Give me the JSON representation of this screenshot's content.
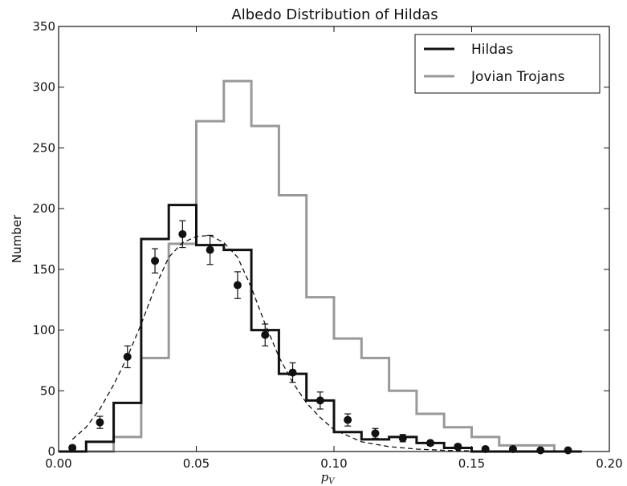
{
  "chart_data": {
    "type": "histogram",
    "title": "Albedo Distribution of Hildas",
    "xlabel": "p",
    "xlabel_sub": "V",
    "ylabel": "Number",
    "xlim": [
      0.0,
      0.2
    ],
    "ylim": [
      0,
      350
    ],
    "xticks": [
      0.0,
      0.05,
      0.1,
      0.15,
      0.2
    ],
    "xtick_labels": [
      "0.00",
      "0.05",
      "0.10",
      "0.15",
      "0.20"
    ],
    "yticks": [
      0,
      50,
      100,
      150,
      200,
      250,
      300,
      350
    ],
    "ytick_labels": [
      "0",
      "50",
      "100",
      "150",
      "200",
      "250",
      "300",
      "350"
    ],
    "grid": false,
    "legend_position": "top-right",
    "bin_edges": [
      0.0,
      0.01,
      0.02,
      0.03,
      0.04,
      0.05,
      0.06,
      0.07,
      0.08,
      0.09,
      0.1,
      0.11,
      0.12,
      0.13,
      0.14,
      0.15,
      0.16,
      0.17,
      0.18,
      0.19
    ],
    "series": [
      {
        "name": "Jovian Trojans",
        "kind": "step",
        "color": "#999999",
        "values": [
          0,
          0,
          12,
          77,
          171,
          272,
          305,
          268,
          211,
          127,
          93,
          77,
          50,
          31,
          20,
          12,
          5,
          5,
          0
        ]
      },
      {
        "name": "Hildas",
        "kind": "step",
        "color": "#111111",
        "values": [
          0,
          8,
          40,
          175,
          203,
          170,
          166,
          100,
          64,
          42,
          16,
          10,
          12,
          7,
          3,
          0,
          0,
          0,
          0
        ]
      },
      {
        "kind": "points",
        "color": "#111111",
        "x": [
          0.005,
          0.015,
          0.025,
          0.035,
          0.045,
          0.055,
          0.065,
          0.075,
          0.085,
          0.095,
          0.105,
          0.115,
          0.125,
          0.135,
          0.145,
          0.155,
          0.165,
          0.175,
          0.185
        ],
        "y": [
          3,
          24,
          78,
          157,
          179,
          166,
          137,
          96,
          65,
          42,
          26,
          15,
          11,
          7,
          4,
          2,
          2,
          1,
          1
        ],
        "yerr": [
          2,
          5,
          9,
          10,
          11,
          12,
          11,
          9,
          8,
          7,
          5,
          4,
          3,
          2,
          2,
          1,
          1,
          1,
          1
        ]
      },
      {
        "kind": "dashed-line",
        "color": "#111111",
        "x": [
          0.005,
          0.01,
          0.015,
          0.02,
          0.025,
          0.03,
          0.035,
          0.04,
          0.045,
          0.05,
          0.055,
          0.06,
          0.065,
          0.07,
          0.075,
          0.08,
          0.085,
          0.09,
          0.095,
          0.1,
          0.11,
          0.12,
          0.13,
          0.14,
          0.15,
          0.16,
          0.17,
          0.18,
          0.19
        ],
        "y": [
          10,
          20,
          35,
          55,
          78,
          105,
          135,
          160,
          172,
          177,
          178,
          172,
          160,
          135,
          105,
          78,
          57,
          40,
          28,
          18,
          8,
          4,
          2,
          1,
          0.5,
          0.3,
          0.2,
          0.1,
          0.1
        ]
      }
    ]
  }
}
